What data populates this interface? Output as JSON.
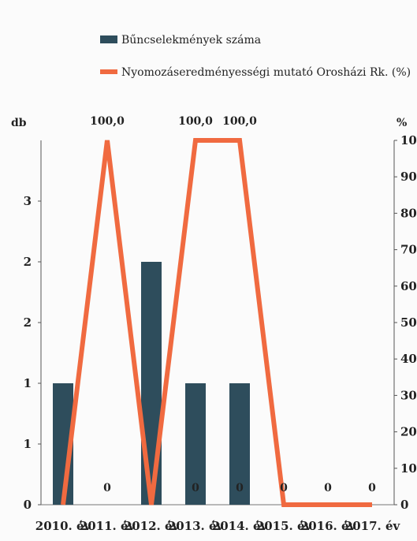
{
  "chart_data": {
    "type": "bar",
    "categories": [
      "2010. év",
      "2011. év",
      "2012. év",
      "2013. év",
      "2014. év",
      "2015. év",
      "2016. év",
      "2017. év"
    ],
    "series": [
      {
        "name": "Bűncselekmények száma",
        "type": "bar",
        "axis": "left",
        "color": "#2e4d5c",
        "values": [
          1,
          0,
          2,
          1,
          1,
          0,
          0,
          0
        ]
      },
      {
        "name": "Nyomozáseredményességi mutató Orosházi Rk. (%)",
        "type": "line",
        "axis": "right",
        "color": "#f06a40",
        "values": [
          0,
          100,
          0,
          100,
          100,
          0,
          0,
          0
        ]
      }
    ],
    "left_axis": {
      "label": "db",
      "ylim": [
        0,
        3
      ],
      "tick_values": [
        0,
        0.5,
        1,
        1.5,
        2,
        2.5,
        3
      ],
      "tick_labels": [
        "0",
        "1",
        "1",
        "2",
        "2",
        "3"
      ]
    },
    "right_axis": {
      "label": "%",
      "ylim": [
        0,
        100
      ],
      "ticks": [
        0,
        10,
        20,
        30,
        40,
        50,
        60,
        70,
        80,
        90,
        100
      ]
    },
    "line_top_labels": [
      "100,0",
      "100,0",
      "100,0"
    ],
    "zero_markers": [
      "0",
      "0",
      "0",
      "0",
      "0",
      "0"
    ],
    "legend_position": "top",
    "grid": false
  }
}
